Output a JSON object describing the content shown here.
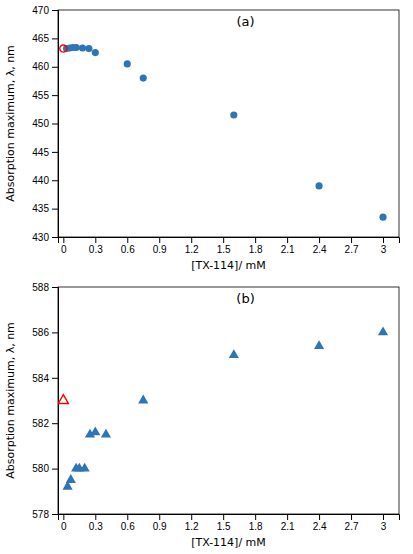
{
  "chart_data": [
    {
      "type": "scatter",
      "title": "(a)",
      "xlabel": "[TX-114]/ mM",
      "ylabel": "Absorption maximum, λ, nm",
      "xlim": [
        -0.05,
        3.15
      ],
      "ylim": [
        430,
        470
      ],
      "xticks": [
        0,
        0.3,
        0.6,
        0.9,
        1.2,
        1.5,
        1.8,
        2.1,
        2.4,
        2.7,
        3
      ],
      "yticks": [
        430,
        435,
        440,
        445,
        450,
        455,
        460,
        465,
        470
      ],
      "grid": false,
      "series": [
        {
          "x": [
            0.03,
            0.06,
            0.09,
            0.12,
            0.18,
            0.24,
            0.3,
            0.6,
            0.75,
            1.6,
            2.4,
            3.0
          ],
          "values": [
            463.2,
            463.3,
            463.4,
            463.4,
            463.3,
            463.2,
            462.5,
            460.5,
            458.0,
            451.5,
            439.0,
            433.5
          ],
          "color": "#2e75b6",
          "marker": "circle"
        },
        {
          "x": [
            0
          ],
          "values": [
            463.2
          ],
          "color": "#ff0000",
          "marker": "open-circle"
        }
      ]
    },
    {
      "type": "scatter",
      "title": "(b)",
      "xlabel": "[TX-114]/ mM",
      "ylabel": "Absorption maximum, λ, nm",
      "xlim": [
        -0.05,
        3.15
      ],
      "ylim": [
        578,
        588
      ],
      "xticks": [
        0,
        0.3,
        0.6,
        0.9,
        1.2,
        1.5,
        1.8,
        2.1,
        2.4,
        2.7,
        3
      ],
      "yticks": [
        578,
        580,
        582,
        584,
        586,
        588
      ],
      "grid": false,
      "series": [
        {
          "x": [
            0.04,
            0.07,
            0.12,
            0.15,
            0.2,
            0.25,
            0.3,
            0.4,
            0.75,
            1.6,
            2.4,
            3.0
          ],
          "values": [
            579.2,
            579.5,
            580.0,
            580.0,
            580.0,
            581.5,
            581.6,
            581.5,
            583.0,
            585.0,
            585.4,
            586.0
          ],
          "color": "#2e75b6",
          "marker": "triangle"
        },
        {
          "x": [
            0
          ],
          "values": [
            583.0
          ],
          "color": "#ff0000",
          "marker": "open-triangle"
        }
      ]
    }
  ]
}
